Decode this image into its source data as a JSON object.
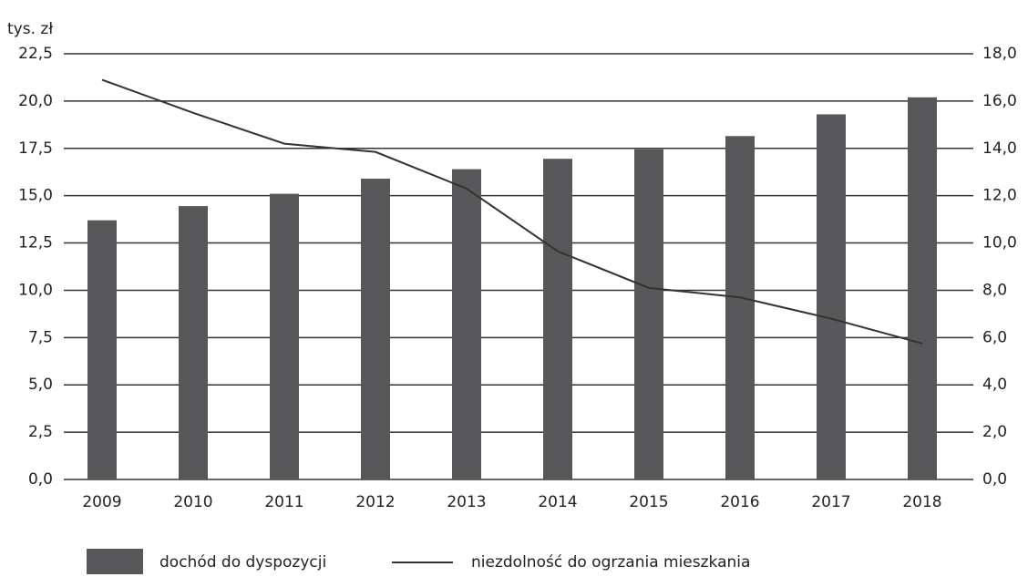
{
  "chart_data": {
    "type": "bar",
    "y_axis_label": "tys. zł",
    "categories": [
      "2009",
      "2010",
      "2011",
      "2012",
      "2013",
      "2014",
      "2015",
      "2016",
      "2017",
      "2018"
    ],
    "series": [
      {
        "name": "dochód do dyspozycji",
        "type": "bar",
        "color": "#58585a",
        "values": [
          13.7,
          14.45,
          15.1,
          15.9,
          16.4,
          16.95,
          17.45,
          18.15,
          19.3,
          20.2
        ]
      },
      {
        "name": "niezdolność do ogrzania mieszkania",
        "type": "line",
        "axis": "y2",
        "color": "#333333",
        "values": [
          16.9,
          15.5,
          14.2,
          13.85,
          12.3,
          9.65,
          8.1,
          7.7,
          6.8,
          5.75
        ]
      }
    ],
    "ylim": [
      0,
      22.5
    ],
    "yticks": [
      {
        "value": 0,
        "label": "0,0"
      },
      {
        "value": 2.5,
        "label": "2,5"
      },
      {
        "value": 5,
        "label": "5,0"
      },
      {
        "value": 7.5,
        "label": "7,5"
      },
      {
        "value": 10,
        "label": "10,0"
      },
      {
        "value": 12.5,
        "label": "12,5"
      },
      {
        "value": 15,
        "label": "15,0"
      },
      {
        "value": 17.5,
        "label": "17,5"
      },
      {
        "value": 20,
        "label": "20,0"
      },
      {
        "value": 22.5,
        "label": "22,5"
      }
    ],
    "y2lim": [
      0,
      18
    ],
    "y2ticks": [
      {
        "value": 0,
        "label": "0,0"
      },
      {
        "value": 2,
        "label": "2,0"
      },
      {
        "value": 4,
        "label": "4,0"
      },
      {
        "value": 6,
        "label": "6,0"
      },
      {
        "value": 8,
        "label": "8,0"
      },
      {
        "value": 10,
        "label": "10,0"
      },
      {
        "value": 12,
        "label": "12,0"
      },
      {
        "value": 14,
        "label": "14,0"
      },
      {
        "value": 16,
        "label": "16,0"
      },
      {
        "value": 18,
        "label": "18,0"
      }
    ],
    "grid": true,
    "legend": "bottom"
  }
}
